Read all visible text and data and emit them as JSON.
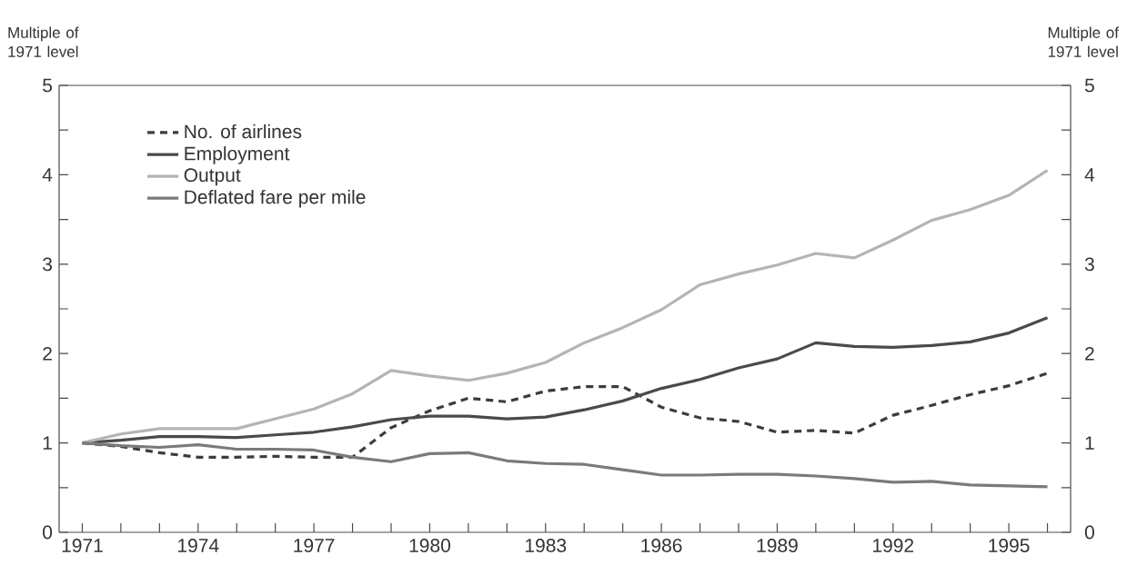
{
  "chart_data": {
    "type": "line",
    "ylabel": "Multiple of 1971 level",
    "y2label": "Multiple of 1971 level",
    "x": [
      1971,
      1972,
      1973,
      1974,
      1975,
      1976,
      1977,
      1978,
      1979,
      1980,
      1981,
      1982,
      1983,
      1984,
      1985,
      1986,
      1987,
      1988,
      1989,
      1990,
      1991,
      1992,
      1993,
      1994,
      1995,
      1996
    ],
    "series": [
      {
        "name": "No. of airlines",
        "color": "#3c3c3c",
        "line_style": "dashed",
        "values": [
          1.0,
          0.96,
          0.89,
          0.84,
          0.84,
          0.85,
          0.84,
          0.84,
          1.17,
          1.36,
          1.5,
          1.46,
          1.58,
          1.63,
          1.63,
          1.4,
          1.28,
          1.24,
          1.12,
          1.14,
          1.11,
          1.31,
          1.42,
          1.54,
          1.64,
          1.78
        ]
      },
      {
        "name": "Employment",
        "color": "#4a4a4a",
        "values": [
          1.0,
          1.03,
          1.07,
          1.07,
          1.06,
          1.09,
          1.12,
          1.18,
          1.26,
          1.3,
          1.3,
          1.27,
          1.29,
          1.37,
          1.47,
          1.61,
          1.71,
          1.84,
          1.94,
          2.12,
          2.08,
          2.07,
          2.09,
          2.13,
          2.23,
          2.4
        ]
      },
      {
        "name": "Output",
        "color": "#b4b4b4",
        "values": [
          1.0,
          1.1,
          1.16,
          1.16,
          1.16,
          1.27,
          1.38,
          1.55,
          1.81,
          1.75,
          1.7,
          1.78,
          1.9,
          2.12,
          2.29,
          2.49,
          2.77,
          2.89,
          2.99,
          3.12,
          3.07,
          3.27,
          3.49,
          3.61,
          3.77,
          4.05
        ]
      },
      {
        "name": "Deflated fare per mile",
        "color": "#7a7a7a",
        "values": [
          1.0,
          0.97,
          0.95,
          0.98,
          0.93,
          0.93,
          0.92,
          0.84,
          0.79,
          0.88,
          0.89,
          0.8,
          0.77,
          0.76,
          0.7,
          0.64,
          0.64,
          0.65,
          0.65,
          0.63,
          0.6,
          0.56,
          0.57,
          0.53,
          0.52,
          0.51
        ]
      }
    ],
    "xlim": [
      1970.4,
      1996.6
    ],
    "xticks": [
      1971,
      {
        "value": 1972,
        "label": null
      },
      {
        "value": 1973,
        "label": null
      },
      1974,
      {
        "value": 1975,
        "label": null
      },
      {
        "value": 1976,
        "label": null
      },
      1977,
      {
        "value": 1978,
        "label": null
      },
      {
        "value": 1979,
        "label": null
      },
      1980,
      {
        "value": 1981,
        "label": null
      },
      {
        "value": 1982,
        "label": null
      },
      1983,
      {
        "value": 1984,
        "label": null
      },
      {
        "value": 1985,
        "label": null
      },
      1986,
      {
        "value": 1987,
        "label": null
      },
      {
        "value": 1988,
        "label": null
      },
      1989,
      {
        "value": 1990,
        "label": null
      },
      {
        "value": 1991,
        "label": null
      },
      1992,
      {
        "value": 1993,
        "label": null
      },
      {
        "value": 1994,
        "label": null
      },
      1995,
      {
        "value": 1996,
        "label": null
      }
    ],
    "ylim": [
      0,
      5
    ],
    "yticks": [
      0,
      {
        "value": 0.5,
        "label": null
      },
      1,
      {
        "value": 1.5,
        "label": null
      },
      2,
      {
        "value": 2.5,
        "label": null
      },
      3,
      {
        "value": 3.5,
        "label": null
      },
      4,
      {
        "value": 4.5,
        "label": null
      },
      5
    ],
    "y2lim": [
      0,
      5
    ],
    "y2ticks": [
      0,
      {
        "value": 0.5,
        "label": null
      },
      1,
      {
        "value": 1.5,
        "label": null
      },
      2,
      {
        "value": 2.5,
        "label": null
      },
      3,
      {
        "value": 3.5,
        "label": null
      },
      4,
      {
        "value": 4.5,
        "label": null
      },
      5
    ],
    "legend": "top left"
  }
}
